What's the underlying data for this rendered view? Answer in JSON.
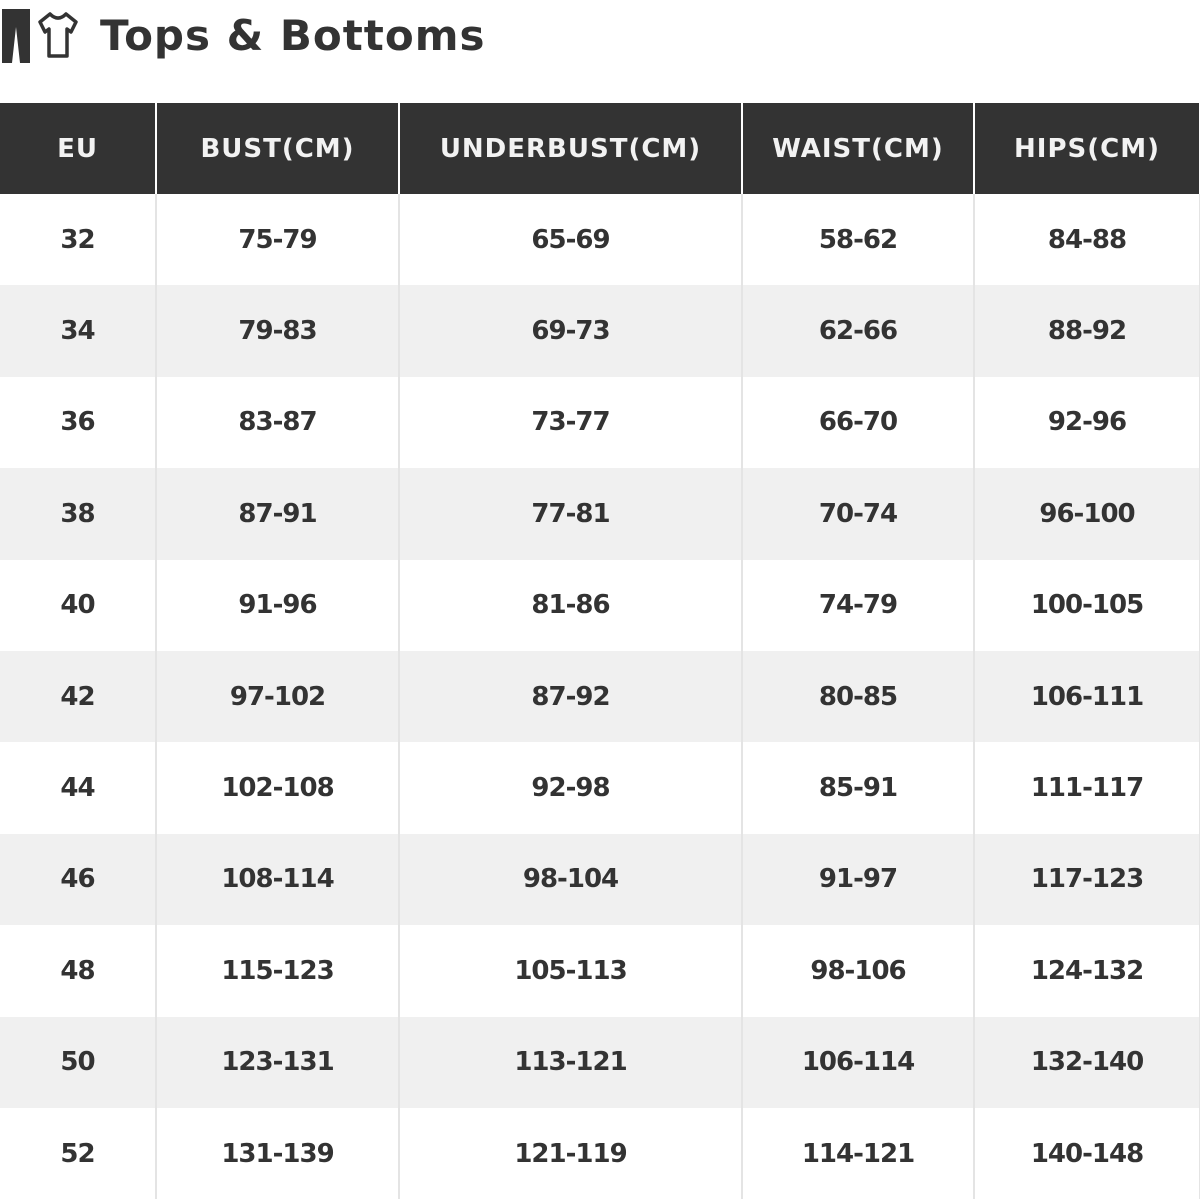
{
  "title": "Tops & Bottoms",
  "icons": [
    "pants-icon",
    "tshirt-icon"
  ],
  "colors": {
    "header_bg": "#333333",
    "header_text": "#f2f2f2",
    "alt_row": "#f0f0f0"
  },
  "columns": [
    "EU",
    "BUST(CM)",
    "UNDERBUST(CM)",
    "WAIST(CM)",
    "HIPS(CM)"
  ],
  "rows": [
    [
      "32",
      "75-79",
      "65-69",
      "58-62",
      "84-88"
    ],
    [
      "34",
      "79-83",
      "69-73",
      "62-66",
      "88-92"
    ],
    [
      "36",
      "83-87",
      "73-77",
      "66-70",
      "92-96"
    ],
    [
      "38",
      "87-91",
      "77-81",
      "70-74",
      "96-100"
    ],
    [
      "40",
      "91-96",
      "81-86",
      "74-79",
      "100-105"
    ],
    [
      "42",
      "97-102",
      "87-92",
      "80-85",
      "106-111"
    ],
    [
      "44",
      "102-108",
      "92-98",
      "85-91",
      "111-117"
    ],
    [
      "46",
      "108-114",
      "98-104",
      "91-97",
      "117-123"
    ],
    [
      "48",
      "115-123",
      "105-113",
      "98-106",
      "124-132"
    ],
    [
      "50",
      "123-131",
      "113-121",
      "106-114",
      "132-140"
    ],
    [
      "52",
      "131-139",
      "121-119",
      "114-121",
      "140-148"
    ]
  ]
}
